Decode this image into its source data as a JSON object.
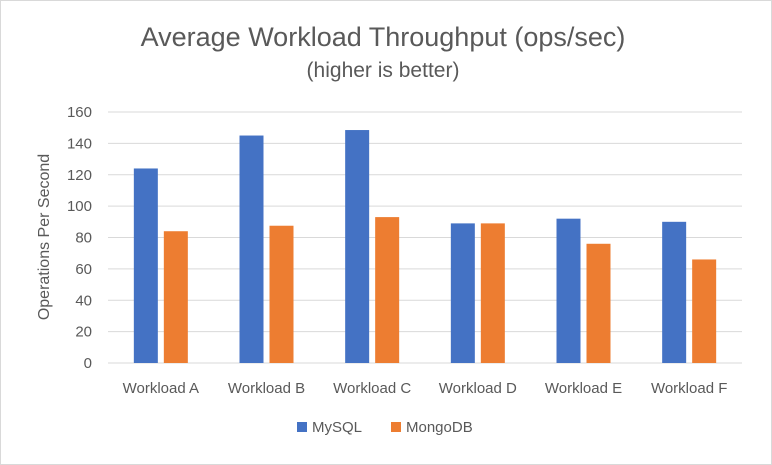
{
  "chart_data": {
    "type": "bar",
    "title": "Average Workload Throughput (ops/sec)",
    "subtitle": "(higher is better)",
    "xlabel": "",
    "ylabel": "Operations Per Second",
    "ylim": [
      0,
      160
    ],
    "yticks": [
      0,
      20,
      40,
      60,
      80,
      100,
      120,
      140,
      160
    ],
    "ytick_labels": [
      "0",
      "20",
      "40",
      "60",
      "80",
      "100",
      "120",
      "140",
      "160"
    ],
    "grid": true,
    "legend_position": "bottom",
    "categories": [
      "Workload A",
      "Workload B",
      "Workload C",
      "Workload D",
      "Workload E",
      "Workload F"
    ],
    "series": [
      {
        "name": "MySQL",
        "color": "#4472c4",
        "values": [
          124,
          145,
          148.5,
          89,
          92,
          90
        ]
      },
      {
        "name": "MongoDB",
        "color": "#ed7d31",
        "values": [
          84,
          87.5,
          93,
          89,
          76,
          66
        ]
      }
    ]
  }
}
